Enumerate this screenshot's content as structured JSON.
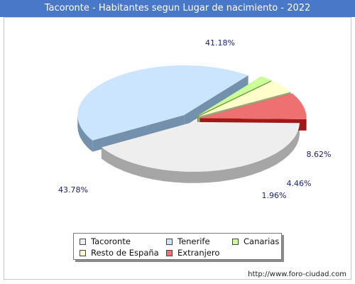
{
  "title": "Tacoronte - Habitantes segun Lugar de nacimiento - 2022",
  "footer": "http://www.foro-ciudad.com",
  "chart_data": {
    "type": "pie",
    "title": "Tacoronte - Habitantes segun Lugar de nacimiento - 2022",
    "series": [
      {
        "name": "Tacoronte",
        "value": 41.18,
        "label": "41.18%",
        "color": "#eeeeee",
        "side": "#a6a6a6"
      },
      {
        "name": "Tenerife",
        "value": 43.78,
        "label": "43.78%",
        "color": "#cce5ff",
        "side": "#7390ac"
      },
      {
        "name": "Canarias",
        "value": 1.96,
        "label": "1.96%",
        "color": "#ccff99",
        "side": "#79a443"
      },
      {
        "name": "Resto de España",
        "value": 4.46,
        "label": "4.46%",
        "color": "#ffffcc",
        "side": "#a3a37a"
      },
      {
        "name": "Extranjero",
        "value": 8.62,
        "label": "8.62%",
        "color": "#ee7070",
        "side": "#a01818"
      }
    ],
    "legend": {
      "placement": "bottom",
      "items": [
        "Tacoronte",
        "Tenerife",
        "Canarias",
        "Resto de España",
        "Extranjero"
      ]
    }
  }
}
